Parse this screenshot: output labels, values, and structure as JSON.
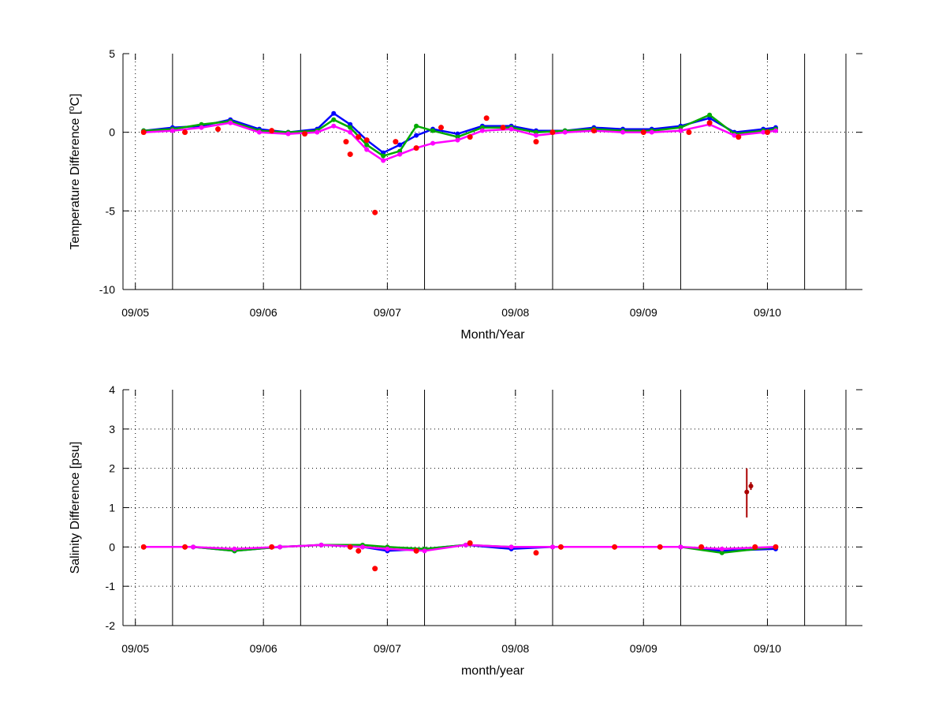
{
  "chart_data": [
    {
      "type": "scatter",
      "xlabel": "Month/Year",
      "ylabel_main": "Temperature Difference [",
      "ylabel_sup": "o",
      "ylabel_tail": "C]",
      "xlim": [
        "2009-04-28",
        "2009-10-24"
      ],
      "ylim": [
        -10,
        5
      ],
      "yticks": [
        -10,
        -5,
        0,
        5
      ],
      "xticks": [
        {
          "date": "2009-05-01",
          "label": "09/05"
        },
        {
          "date": "2009-06-01",
          "label": "09/06"
        },
        {
          "date": "2009-07-01",
          "label": "09/07"
        },
        {
          "date": "2009-08-01",
          "label": "09/08"
        },
        {
          "date": "2009-09-01",
          "label": "09/09"
        },
        {
          "date": "2009-10-01",
          "label": "09/10"
        }
      ],
      "vlines": [
        "2009-05-10",
        "2009-06-10",
        "2009-07-10",
        "2009-08-10",
        "2009-09-10",
        "2009-10-10",
        "2009-10-20"
      ],
      "grid": true,
      "series": [
        {
          "color": "#0000ff",
          "style": "line+marker",
          "points": [
            [
              "2009-05-03",
              0.1
            ],
            [
              "2009-05-10",
              0.3
            ],
            [
              "2009-05-17",
              0.4
            ],
            [
              "2009-05-24",
              0.8
            ],
            [
              "2009-05-31",
              0.2
            ],
            [
              "2009-06-07",
              0.0
            ],
            [
              "2009-06-14",
              0.2
            ],
            [
              "2009-06-18",
              1.2
            ],
            [
              "2009-06-22",
              0.5
            ],
            [
              "2009-06-26",
              -0.5
            ],
            [
              "2009-06-30",
              -1.3
            ],
            [
              "2009-07-04",
              -0.8
            ],
            [
              "2009-07-08",
              -0.2
            ],
            [
              "2009-07-12",
              0.2
            ],
            [
              "2009-07-18",
              -0.1
            ],
            [
              "2009-07-24",
              0.4
            ],
            [
              "2009-07-31",
              0.4
            ],
            [
              "2009-08-06",
              0.1
            ],
            [
              "2009-08-13",
              0.1
            ],
            [
              "2009-08-20",
              0.3
            ],
            [
              "2009-08-27",
              0.2
            ],
            [
              "2009-09-03",
              0.2
            ],
            [
              "2009-09-10",
              0.4
            ],
            [
              "2009-09-17",
              0.9
            ],
            [
              "2009-09-23",
              0.0
            ],
            [
              "2009-09-30",
              0.2
            ],
            [
              "2009-10-03",
              0.3
            ]
          ]
        },
        {
          "color": "#00aa00",
          "style": "line+marker",
          "points": [
            [
              "2009-05-03",
              0.1
            ],
            [
              "2009-05-10",
              0.2
            ],
            [
              "2009-05-17",
              0.5
            ],
            [
              "2009-05-24",
              0.7
            ],
            [
              "2009-05-31",
              0.1
            ],
            [
              "2009-06-07",
              0.0
            ],
            [
              "2009-06-14",
              0.1
            ],
            [
              "2009-06-18",
              0.8
            ],
            [
              "2009-06-22",
              0.3
            ],
            [
              "2009-06-26",
              -0.8
            ],
            [
              "2009-06-30",
              -1.5
            ],
            [
              "2009-07-04",
              -1.2
            ],
            [
              "2009-07-08",
              0.4
            ],
            [
              "2009-07-12",
              0.1
            ],
            [
              "2009-07-18",
              -0.3
            ],
            [
              "2009-07-24",
              0.3
            ],
            [
              "2009-07-31",
              0.3
            ],
            [
              "2009-08-06",
              0.0
            ],
            [
              "2009-08-13",
              0.1
            ],
            [
              "2009-08-20",
              0.2
            ],
            [
              "2009-08-27",
              0.1
            ],
            [
              "2009-09-03",
              0.1
            ],
            [
              "2009-09-10",
              0.3
            ],
            [
              "2009-09-17",
              1.1
            ],
            [
              "2009-09-23",
              -0.1
            ],
            [
              "2009-09-30",
              0.1
            ],
            [
              "2009-10-03",
              0.2
            ]
          ]
        },
        {
          "color": "#ff00ff",
          "style": "line+marker",
          "points": [
            [
              "2009-05-03",
              0.0
            ],
            [
              "2009-05-10",
              0.1
            ],
            [
              "2009-05-17",
              0.3
            ],
            [
              "2009-05-24",
              0.6
            ],
            [
              "2009-05-31",
              0.0
            ],
            [
              "2009-06-07",
              -0.1
            ],
            [
              "2009-06-14",
              0.0
            ],
            [
              "2009-06-18",
              0.4
            ],
            [
              "2009-06-22",
              0.0
            ],
            [
              "2009-06-26",
              -1.1
            ],
            [
              "2009-06-30",
              -1.8
            ],
            [
              "2009-07-04",
              -1.4
            ],
            [
              "2009-07-08",
              -1.0
            ],
            [
              "2009-07-12",
              -0.7
            ],
            [
              "2009-07-18",
              -0.5
            ],
            [
              "2009-07-24",
              0.1
            ],
            [
              "2009-07-31",
              0.2
            ],
            [
              "2009-08-06",
              -0.2
            ],
            [
              "2009-08-13",
              0.0
            ],
            [
              "2009-08-20",
              0.1
            ],
            [
              "2009-08-27",
              0.0
            ],
            [
              "2009-09-03",
              0.0
            ],
            [
              "2009-09-10",
              0.1
            ],
            [
              "2009-09-17",
              0.5
            ],
            [
              "2009-09-23",
              -0.2
            ],
            [
              "2009-09-30",
              0.0
            ],
            [
              "2009-10-03",
              0.1
            ]
          ]
        },
        {
          "color": "#ff0000",
          "style": "marker",
          "points": [
            [
              "2009-05-03",
              0.0
            ],
            [
              "2009-05-13",
              0.0
            ],
            [
              "2009-05-21",
              0.2
            ],
            [
              "2009-06-03",
              0.1
            ],
            [
              "2009-06-11",
              -0.1
            ],
            [
              "2009-06-21",
              -0.6
            ],
            [
              "2009-06-22",
              -1.4
            ],
            [
              "2009-06-24",
              -0.3
            ],
            [
              "2009-06-26",
              -0.5
            ],
            [
              "2009-06-28",
              -5.1
            ],
            [
              "2009-07-03",
              -0.6
            ],
            [
              "2009-07-08",
              -1.0
            ],
            [
              "2009-07-14",
              0.3
            ],
            [
              "2009-07-21",
              -0.3
            ],
            [
              "2009-07-25",
              0.9
            ],
            [
              "2009-07-29",
              0.3
            ],
            [
              "2009-08-06",
              -0.6
            ],
            [
              "2009-08-10",
              0.0
            ],
            [
              "2009-08-20",
              0.1
            ],
            [
              "2009-09-01",
              0.0
            ],
            [
              "2009-09-12",
              0.0
            ],
            [
              "2009-09-17",
              0.6
            ],
            [
              "2009-09-24",
              -0.3
            ],
            [
              "2009-10-01",
              0.0
            ]
          ]
        }
      ]
    },
    {
      "type": "scatter",
      "xlabel": "month/year",
      "ylabel": "Salinity Difference [psu]",
      "xlim": [
        "2009-04-28",
        "2009-10-24"
      ],
      "ylim": [
        -2,
        4
      ],
      "yticks": [
        -2,
        -1,
        0,
        1,
        2,
        3,
        4
      ],
      "xticks": [
        {
          "date": "2009-05-01",
          "label": "09/05"
        },
        {
          "date": "2009-06-01",
          "label": "09/06"
        },
        {
          "date": "2009-07-01",
          "label": "09/07"
        },
        {
          "date": "2009-08-01",
          "label": "09/08"
        },
        {
          "date": "2009-09-01",
          "label": "09/09"
        },
        {
          "date": "2009-10-01",
          "label": "09/10"
        }
      ],
      "vlines": [
        "2009-05-10",
        "2009-06-10",
        "2009-07-10",
        "2009-08-10",
        "2009-09-10",
        "2009-10-10",
        "2009-10-20"
      ],
      "grid": true,
      "series": [
        {
          "color": "#0000ff",
          "style": "line+marker",
          "points": [
            [
              "2009-05-03",
              0.0
            ],
            [
              "2009-05-15",
              0.0
            ],
            [
              "2009-05-25",
              -0.1
            ],
            [
              "2009-06-05",
              0.0
            ],
            [
              "2009-06-15",
              0.05
            ],
            [
              "2009-06-25",
              0.0
            ],
            [
              "2009-07-01",
              -0.1
            ],
            [
              "2009-07-10",
              -0.05
            ],
            [
              "2009-07-20",
              0.05
            ],
            [
              "2009-07-31",
              -0.05
            ],
            [
              "2009-08-10",
              0.0
            ],
            [
              "2009-08-25",
              0.0
            ],
            [
              "2009-09-10",
              0.0
            ],
            [
              "2009-09-20",
              -0.1
            ],
            [
              "2009-10-03",
              -0.05
            ]
          ]
        },
        {
          "color": "#00aa00",
          "style": "line+marker",
          "points": [
            [
              "2009-05-03",
              0.0
            ],
            [
              "2009-05-15",
              0.0
            ],
            [
              "2009-05-25",
              -0.1
            ],
            [
              "2009-06-05",
              0.0
            ],
            [
              "2009-06-15",
              0.05
            ],
            [
              "2009-06-25",
              0.05
            ],
            [
              "2009-07-01",
              0.0
            ],
            [
              "2009-07-10",
              -0.05
            ],
            [
              "2009-07-20",
              0.05
            ],
            [
              "2009-07-31",
              0.0
            ],
            [
              "2009-08-10",
              0.0
            ],
            [
              "2009-08-25",
              0.0
            ],
            [
              "2009-09-10",
              0.0
            ],
            [
              "2009-09-20",
              -0.15
            ],
            [
              "2009-10-03",
              0.0
            ]
          ]
        },
        {
          "color": "#ff00ff",
          "style": "line+marker",
          "points": [
            [
              "2009-05-03",
              0.0
            ],
            [
              "2009-05-15",
              0.0
            ],
            [
              "2009-05-25",
              -0.05
            ],
            [
              "2009-06-05",
              0.0
            ],
            [
              "2009-06-15",
              0.05
            ],
            [
              "2009-06-25",
              0.0
            ],
            [
              "2009-07-01",
              -0.05
            ],
            [
              "2009-07-10",
              -0.1
            ],
            [
              "2009-07-20",
              0.05
            ],
            [
              "2009-07-31",
              0.0
            ],
            [
              "2009-08-10",
              0.0
            ],
            [
              "2009-08-25",
              0.0
            ],
            [
              "2009-09-10",
              0.0
            ],
            [
              "2009-09-20",
              -0.05
            ],
            [
              "2009-10-03",
              0.0
            ]
          ]
        },
        {
          "color": "#ff0000",
          "style": "marker",
          "points": [
            [
              "2009-05-03",
              0.0
            ],
            [
              "2009-05-13",
              0.0
            ],
            [
              "2009-06-03",
              0.0
            ],
            [
              "2009-06-22",
              0.0
            ],
            [
              "2009-06-24",
              -0.1
            ],
            [
              "2009-06-28",
              -0.55
            ],
            [
              "2009-07-08",
              -0.1
            ],
            [
              "2009-07-21",
              0.1
            ],
            [
              "2009-08-06",
              -0.15
            ],
            [
              "2009-08-12",
              0.0
            ],
            [
              "2009-08-25",
              0.0
            ],
            [
              "2009-09-05",
              0.0
            ],
            [
              "2009-09-15",
              0.0
            ],
            [
              "2009-09-28",
              0.0
            ],
            [
              "2009-10-03",
              0.0
            ]
          ]
        },
        {
          "color": "#aa0000",
          "style": "errorbar",
          "points": [
            [
              "2009-09-26",
              1.4,
              0.75,
              2.0
            ],
            [
              "2009-09-27",
              1.55,
              1.45,
              1.65
            ]
          ]
        }
      ]
    }
  ]
}
